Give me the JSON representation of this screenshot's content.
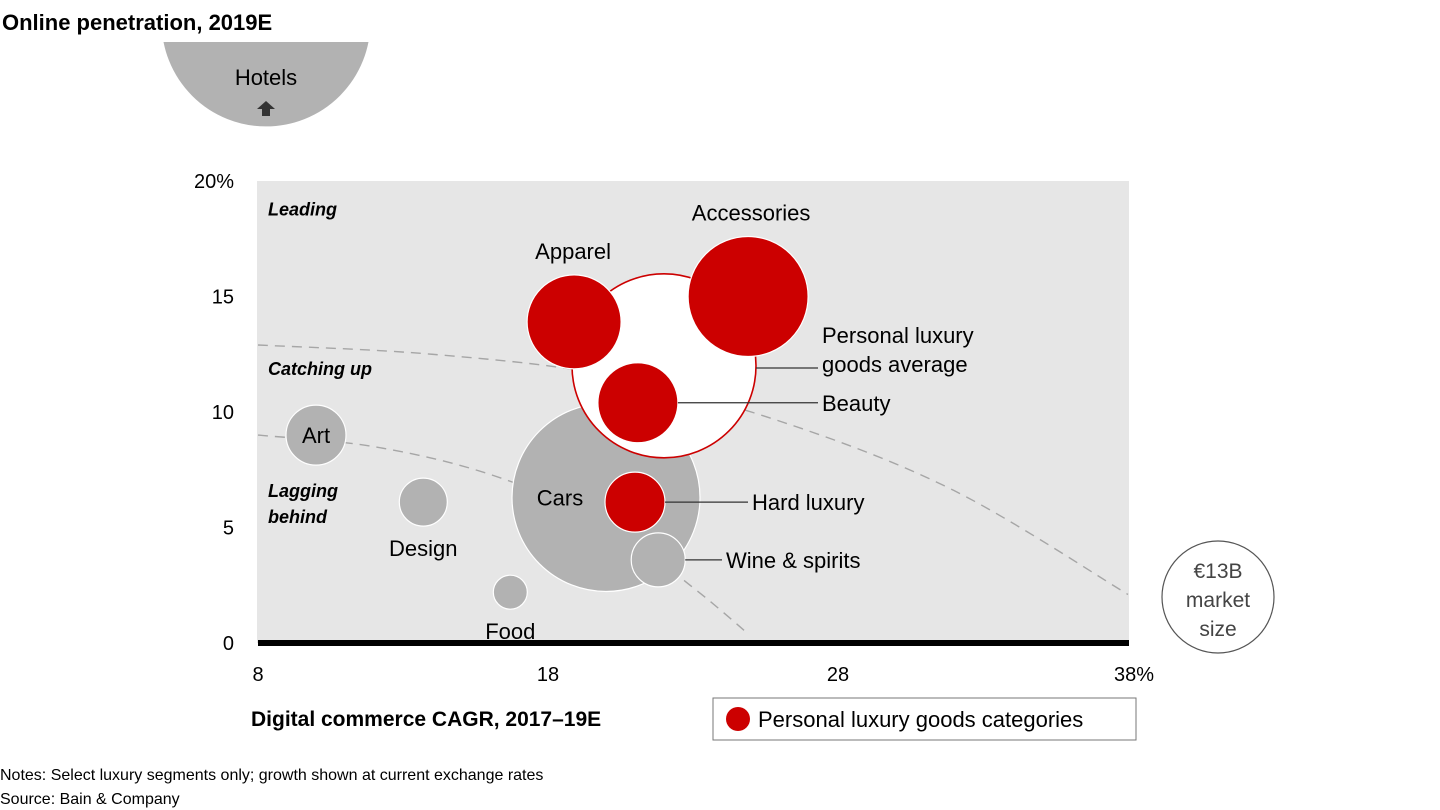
{
  "chart_data": {
    "type": "scatter",
    "subtype": "bubble",
    "title": "Online penetration, 2019E",
    "xlabel": "Digital commerce CAGR, 2017–19E",
    "ylabel": "Online penetration, 2019E",
    "xlim": [
      8,
      38
    ],
    "ylim": [
      0,
      20
    ],
    "x_ticks": [
      "8",
      "18",
      "28",
      "38%"
    ],
    "x_tick_values": [
      8,
      18,
      28,
      38
    ],
    "y_ticks": [
      "0",
      "5",
      "10",
      "15",
      "20%"
    ],
    "y_tick_values": [
      0,
      5,
      10,
      15,
      20
    ],
    "grid": false,
    "zones": [
      {
        "label": "Leading",
        "y": 18.5
      },
      {
        "label": "Catching up",
        "y": 11.6
      },
      {
        "label": "Lagging behind",
        "y": 6.2
      }
    ],
    "frontiers": [
      {
        "name": "upper-frontier",
        "points": [
          [
            8,
            12.9
          ],
          [
            14,
            12.5
          ],
          [
            20,
            11.6
          ],
          [
            26,
            9.6
          ],
          [
            32,
            6.6
          ],
          [
            38,
            2.1
          ]
        ]
      },
      {
        "name": "lower-frontier",
        "points": [
          [
            8,
            9.0
          ],
          [
            12,
            8.5
          ],
          [
            16,
            7.3
          ],
          [
            20,
            5.2
          ],
          [
            23,
            2.4
          ],
          [
            24.9,
            0.4
          ]
        ]
      }
    ],
    "series": [
      {
        "name": "Hotels",
        "x": 8.3,
        "y": 27.5,
        "size": 105,
        "category": "other",
        "offscale": true,
        "label_pos": "inside"
      },
      {
        "name": "Art",
        "x": 10.0,
        "y": 9.0,
        "size": 30,
        "category": "other",
        "label_pos": "inside"
      },
      {
        "name": "Design",
        "x": 13.7,
        "y": 6.1,
        "size": 24,
        "category": "other",
        "label_pos": "below"
      },
      {
        "name": "Food",
        "x": 16.7,
        "y": 2.2,
        "size": 17,
        "category": "other",
        "label_pos": "below"
      },
      {
        "name": "Cars",
        "x": 20.0,
        "y": 6.3,
        "size": 94,
        "category": "other",
        "label_pos": "inside-left"
      },
      {
        "name": "Personal luxury goods average",
        "x": 22.0,
        "y": 12.0,
        "size": 92,
        "category": "average",
        "label_pos": "right-leader"
      },
      {
        "name": "Apparel",
        "x": 18.9,
        "y": 13.9,
        "size": 47,
        "category": "personal-luxury",
        "label_pos": "above"
      },
      {
        "name": "Accessories",
        "x": 24.9,
        "y": 15.0,
        "size": 60,
        "category": "personal-luxury",
        "label_pos": "above"
      },
      {
        "name": "Beauty",
        "x": 21.1,
        "y": 10.4,
        "size": 40,
        "category": "personal-luxury",
        "label_pos": "right-leader"
      },
      {
        "name": "Hard luxury",
        "x": 21.0,
        "y": 6.1,
        "size": 30,
        "category": "personal-luxury",
        "label_pos": "right-leader"
      },
      {
        "name": "Wine & spirits",
        "x": 21.8,
        "y": 3.6,
        "size": 27,
        "category": "other",
        "label_pos": "right-leader"
      }
    ],
    "size_key": {
      "lines": [
        "€13B",
        "market",
        "size"
      ]
    },
    "legend": {
      "position": "bottom-right",
      "entries": [
        {
          "label": "Personal luxury goods categories",
          "color": "#cc0000"
        }
      ]
    },
    "colors": {
      "personal_luxury": "#cc0000",
      "other": "#b2b2b2",
      "average_fill": "#ffffff",
      "average_stroke": "#cc0000",
      "plot_bg": "#e6e6e6",
      "frontier": "#a6a6a6"
    }
  },
  "hotels_arrow": "up-arrow-icon",
  "labels": {
    "personal_luxury_line1": "Personal luxury",
    "personal_luxury_line2": "goods average"
  },
  "notes": "Notes: Select luxury segments only; growth shown at current exchange rates",
  "source": "Source: Bain & Company"
}
